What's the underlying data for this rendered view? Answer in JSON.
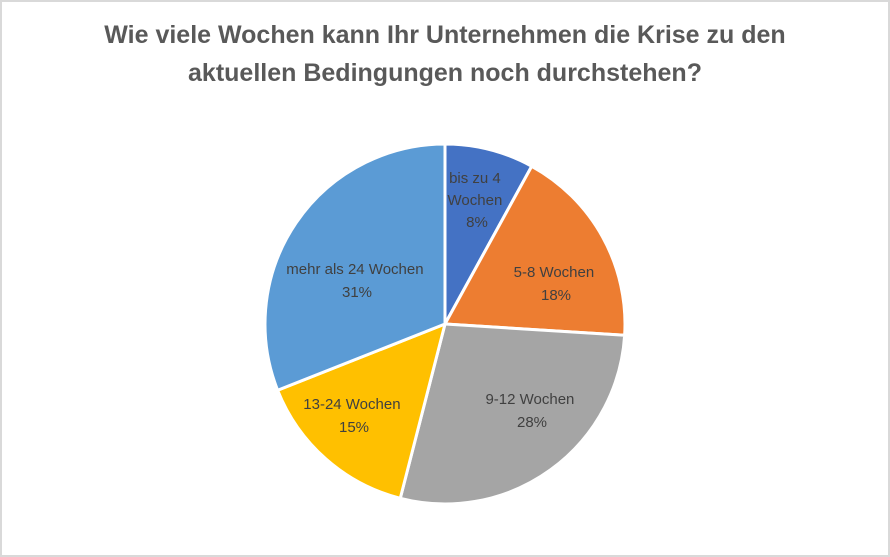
{
  "chart_data": {
    "type": "pie",
    "title": "Wie viele Wochen kann Ihr Unternehmen die Krise zu den aktuellen Bedingungen noch durchstehen?",
    "title_lines": [
      "Wie viele Wochen kann Ihr Unternehmen die Krise zu den",
      "aktuellen Bedingungen noch durchstehen?"
    ],
    "categories": [
      "bis zu 4 Wochen",
      "5-8 Wochen",
      "9-12 Wochen",
      "13-24 Wochen",
      "mehr als 24 Wochen"
    ],
    "values": [
      8,
      18,
      28,
      15,
      31
    ],
    "unit": "%",
    "colors": [
      "#4472c4",
      "#ed7d31",
      "#a5a5a5",
      "#ffc000",
      "#5b9bd5"
    ],
    "legend": "none",
    "data_labels": "category name and percentage inside slices",
    "start_angle_deg": 0,
    "direction": "clockwise"
  },
  "slices": [
    {
      "label_lines": [
        "bis zu 4",
        "Wochen"
      ],
      "pct": "8%"
    },
    {
      "label_lines": [
        "5-8 Wochen"
      ],
      "pct": "18%"
    },
    {
      "label_lines": [
        "9-12 Wochen"
      ],
      "pct": "28%"
    },
    {
      "label_lines": [
        "13-24 Wochen"
      ],
      "pct": "15%"
    },
    {
      "label_lines": [
        "mehr als 24 Wochen"
      ],
      "pct": "31%"
    }
  ]
}
